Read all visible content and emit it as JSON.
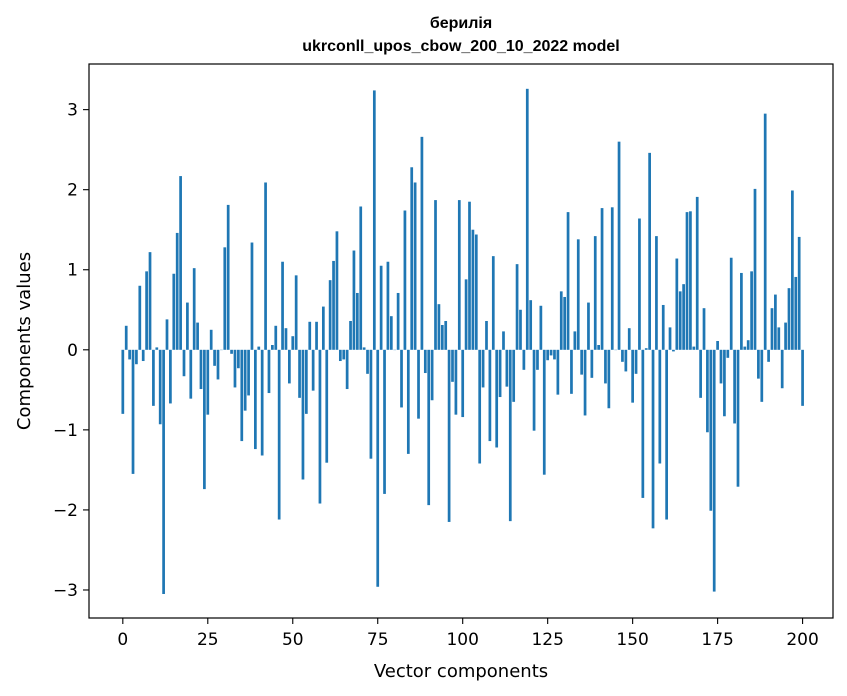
{
  "chart_data": {
    "type": "bar",
    "title": "берилія",
    "subtitle": "ukrconll_upos_cbow_200_10_2022 model",
    "xlabel": "Vector components",
    "ylabel": "Components values",
    "xlim": [
      -9.95,
      208.95
    ],
    "ylim": [
      -3.35,
      3.57
    ],
    "xticks": [
      0,
      25,
      50,
      75,
      100,
      125,
      150,
      175,
      200
    ],
    "xtick_labels": [
      "0",
      "25",
      "50",
      "75",
      "100",
      "125",
      "150",
      "175",
      "200"
    ],
    "yticks": [
      -3,
      -2,
      -1,
      0,
      1,
      2,
      3
    ],
    "ytick_labels": [
      "−3",
      "−2",
      "−1",
      "0",
      "1",
      "2",
      "3"
    ],
    "bar_color": "#1f77b4",
    "grid": false,
    "series": [
      {
        "values": [
          -0.8,
          0.3,
          -0.12,
          -1.55,
          -0.18,
          0.8,
          -0.14,
          0.98,
          1.22,
          -0.7,
          0.03,
          -0.93,
          -3.05,
          0.38,
          -0.67,
          0.95,
          1.46,
          2.17,
          -0.33,
          0.59,
          -0.61,
          1.02,
          0.34,
          -0.49,
          -1.74,
          -0.81,
          0.25,
          -0.2,
          -0.37,
          0.0,
          1.28,
          1.81,
          -0.05,
          -0.47,
          -0.23,
          -1.14,
          -0.76,
          -0.57,
          1.34,
          -1.24,
          0.04,
          -1.32,
          2.09,
          -0.54,
          0.06,
          0.3,
          -2.12,
          1.1,
          0.27,
          -0.42,
          0.17,
          0.93,
          -0.6,
          -1.62,
          -0.8,
          0.35,
          -0.51,
          0.35,
          -1.92,
          0.54,
          -1.41,
          0.87,
          1.11,
          1.48,
          -0.14,
          -0.12,
          -0.49,
          0.36,
          1.24,
          0.71,
          1.79,
          0.03,
          -0.3,
          -1.36,
          3.24,
          -2.96,
          1.05,
          -1.8,
          1.1,
          0.42,
          0.0,
          0.71,
          -0.72,
          1.74,
          -1.3,
          2.28,
          2.09,
          -0.86,
          2.66,
          -0.29,
          -1.94,
          -0.63,
          1.87,
          0.57,
          0.31,
          0.36,
          -2.15,
          -0.4,
          -0.81,
          1.87,
          -0.84,
          0.88,
          1.85,
          1.5,
          1.44,
          -1.42,
          -0.47,
          0.36,
          -1.14,
          1.17,
          -1.22,
          -0.59,
          0.23,
          -0.46,
          -2.14,
          -0.65,
          1.07,
          0.5,
          -0.25,
          3.26,
          0.62,
          -1.01,
          -0.25,
          0.55,
          -1.56,
          -0.13,
          -0.07,
          -0.12,
          -0.56,
          0.73,
          0.66,
          1.72,
          -0.55,
          0.23,
          1.38,
          -0.31,
          -0.82,
          0.59,
          -0.35,
          1.42,
          0.06,
          1.77,
          -0.42,
          -0.73,
          1.78,
          0.0,
          2.6,
          -0.15,
          -0.27,
          0.27,
          -0.66,
          -0.3,
          1.64,
          -1.85,
          0.02,
          2.46,
          -2.23,
          1.42,
          -1.42,
          0.56,
          -2.12,
          0.28,
          -0.02,
          1.14,
          0.73,
          0.82,
          1.72,
          1.73,
          0.04,
          1.91,
          -0.6,
          0.52,
          -1.03,
          -2.01,
          -3.02,
          0.11,
          -0.42,
          -0.83,
          -0.1,
          1.15,
          -0.92,
          -1.71,
          0.96,
          0.04,
          0.12,
          0.98,
          2.01,
          -0.36,
          -0.65,
          2.95,
          -0.15,
          0.52,
          0.69,
          0.28,
          -0.48,
          0.34,
          0.77,
          1.99,
          0.91,
          1.41,
          -0.7
        ]
      }
    ]
  }
}
